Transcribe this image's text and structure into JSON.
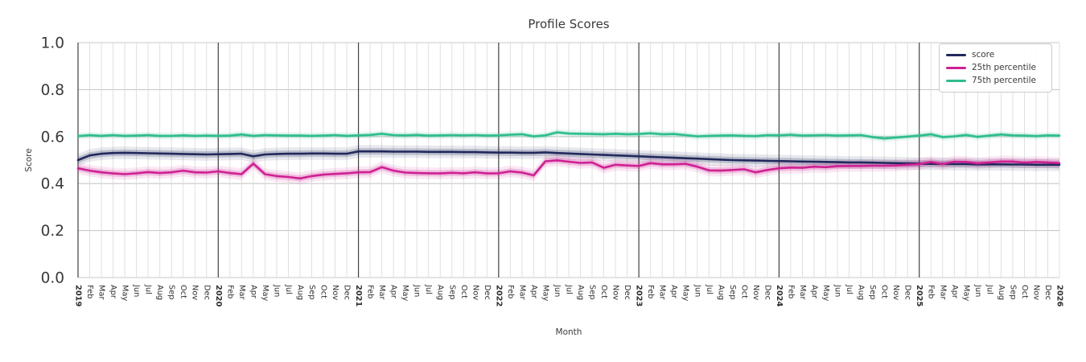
{
  "chart_data": {
    "type": "line",
    "title": "Profile Scores",
    "xlabel": "Month",
    "ylabel": "Score",
    "ylim": [
      0.0,
      1.0
    ],
    "yticks": [
      0.0,
      0.2,
      0.4,
      0.6,
      0.8,
      1.0
    ],
    "grid": true,
    "legend_position": "upper right",
    "x_tick_labels": [
      "2019",
      "Feb",
      "Mar",
      "Apr",
      "May",
      "Jun",
      "Jul",
      "Aug",
      "Sep",
      "Oct",
      "Nov",
      "Dec",
      "2020",
      "Feb",
      "Mar",
      "Apr",
      "May",
      "Jun",
      "Jul",
      "Aug",
      "Sep",
      "Oct",
      "Nov",
      "Dec",
      "2021",
      "Feb",
      "Mar",
      "Apr",
      "May",
      "Jun",
      "Jul",
      "Aug",
      "Sep",
      "Oct",
      "Nov",
      "Dec",
      "2022",
      "Feb",
      "Mar",
      "Apr",
      "May",
      "Jun",
      "Jul",
      "Aug",
      "Sep",
      "Oct",
      "Nov",
      "Dec",
      "2023",
      "Feb",
      "Mar",
      "Apr",
      "May",
      "Jun",
      "Jul",
      "Aug",
      "Sep",
      "Oct",
      "Nov",
      "Dec",
      "2024",
      "Feb",
      "Mar",
      "Apr",
      "May",
      "Jun",
      "Jul",
      "Aug",
      "Sep",
      "Oct",
      "Nov",
      "Dec",
      "2025",
      "Feb",
      "Mar",
      "Apr",
      "May",
      "Jun",
      "Jul",
      "Aug",
      "Sep",
      "Oct",
      "Nov",
      "Dec",
      "2026"
    ],
    "year_tick_is_bold": true,
    "series": [
      {
        "name": "score",
        "color": "#21295c",
        "band_halfwidth": 0.014,
        "values": [
          0.5,
          0.52,
          0.527,
          0.53,
          0.531,
          0.53,
          0.529,
          0.528,
          0.527,
          0.526,
          0.525,
          0.524,
          0.525,
          0.526,
          0.527,
          0.516,
          0.524,
          0.526,
          0.527,
          0.527,
          0.528,
          0.528,
          0.527,
          0.527,
          0.537,
          0.537,
          0.537,
          0.536,
          0.536,
          0.536,
          0.535,
          0.535,
          0.535,
          0.534,
          0.534,
          0.533,
          0.532,
          0.532,
          0.531,
          0.531,
          0.533,
          0.53,
          0.528,
          0.526,
          0.524,
          0.522,
          0.52,
          0.518,
          0.516,
          0.514,
          0.512,
          0.51,
          0.508,
          0.506,
          0.504,
          0.502,
          0.5,
          0.499,
          0.498,
          0.497,
          0.496,
          0.495,
          0.494,
          0.493,
          0.492,
          0.491,
          0.49,
          0.49,
          0.489,
          0.488,
          0.487,
          0.486,
          0.485,
          0.484,
          0.484,
          0.483,
          0.483,
          0.482,
          0.482,
          0.482,
          0.481,
          0.481,
          0.48,
          0.48,
          0.48
        ]
      },
      {
        "name": "25th percentile",
        "color": "#cf2093",
        "band_halfwidth": 0.013,
        "values": [
          0.465,
          0.455,
          0.448,
          0.443,
          0.44,
          0.444,
          0.449,
          0.445,
          0.448,
          0.455,
          0.448,
          0.447,
          0.452,
          0.445,
          0.44,
          0.485,
          0.44,
          0.432,
          0.428,
          0.422,
          0.432,
          0.438,
          0.441,
          0.444,
          0.448,
          0.449,
          0.47,
          0.455,
          0.447,
          0.445,
          0.444,
          0.443,
          0.446,
          0.444,
          0.448,
          0.443,
          0.444,
          0.452,
          0.447,
          0.435,
          0.495,
          0.499,
          0.493,
          0.488,
          0.49,
          0.467,
          0.48,
          0.477,
          0.475,
          0.487,
          0.482,
          0.482,
          0.484,
          0.472,
          0.456,
          0.455,
          0.458,
          0.461,
          0.448,
          0.458,
          0.465,
          0.468,
          0.467,
          0.472,
          0.47,
          0.474,
          0.475,
          0.475,
          0.476,
          0.476,
          0.477,
          0.48,
          0.483,
          0.492,
          0.483,
          0.493,
          0.492,
          0.486,
          0.49,
          0.494,
          0.494,
          0.489,
          0.492,
          0.49,
          0.487
        ]
      },
      {
        "name": "75th percentile",
        "color": "#2ebd8e",
        "band_halfwidth": 0.008,
        "values": [
          0.602,
          0.606,
          0.603,
          0.606,
          0.603,
          0.604,
          0.606,
          0.603,
          0.603,
          0.605,
          0.603,
          0.604,
          0.603,
          0.604,
          0.609,
          0.603,
          0.606,
          0.605,
          0.604,
          0.604,
          0.603,
          0.604,
          0.606,
          0.603,
          0.605,
          0.607,
          0.612,
          0.606,
          0.605,
          0.607,
          0.604,
          0.605,
          0.606,
          0.605,
          0.606,
          0.604,
          0.605,
          0.608,
          0.61,
          0.601,
          0.605,
          0.618,
          0.613,
          0.612,
          0.611,
          0.61,
          0.612,
          0.61,
          0.611,
          0.614,
          0.61,
          0.611,
          0.606,
          0.601,
          0.603,
          0.604,
          0.605,
          0.603,
          0.602,
          0.606,
          0.605,
          0.608,
          0.604,
          0.605,
          0.606,
          0.604,
          0.605,
          0.606,
          0.598,
          0.592,
          0.596,
          0.6,
          0.604,
          0.61,
          0.598,
          0.601,
          0.607,
          0.599,
          0.604,
          0.609,
          0.605,
          0.604,
          0.602,
          0.605,
          0.604
        ]
      }
    ],
    "colors": {
      "grid_minor": "#dcdcdc",
      "grid_major_h": "#c9c9c9",
      "year_line": "#404040",
      "text": "#3a3a3a"
    }
  }
}
